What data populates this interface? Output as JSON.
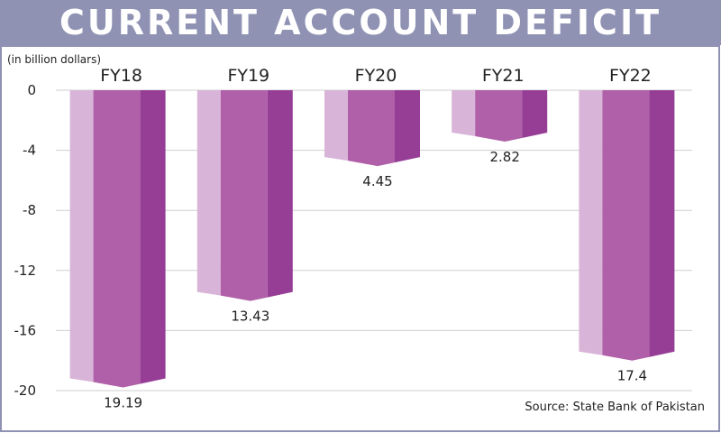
{
  "chart_data": {
    "type": "bar",
    "title": "CURRENT ACCOUNT DEFICIT",
    "unit_note": "(in billion dollars)",
    "source": "Source: State Bank of Pakistan",
    "categories": [
      "FY18",
      "FY19",
      "FY20",
      "FY21",
      "FY22"
    ],
    "values": [
      -19.19,
      -13.43,
      -4.45,
      -2.82,
      -17.4
    ],
    "value_labels": [
      "19.19",
      "13.43",
      "4.45",
      "2.82",
      "17.4"
    ],
    "ylim": [
      -20,
      0
    ],
    "yticks": [
      0,
      -4,
      -8,
      -12,
      -16,
      -20
    ],
    "ytick_labels": [
      "0",
      "-4",
      "-8",
      "-12",
      "-16",
      "-20"
    ],
    "grid": true,
    "colors": {
      "title_bg": "#8f92b3",
      "bar_light": "#d8b5d8",
      "bar_mid": "#b060a8",
      "bar_dark": "#963d96",
      "grid": "#cfcfcf",
      "frame": "#8f92b3"
    }
  }
}
